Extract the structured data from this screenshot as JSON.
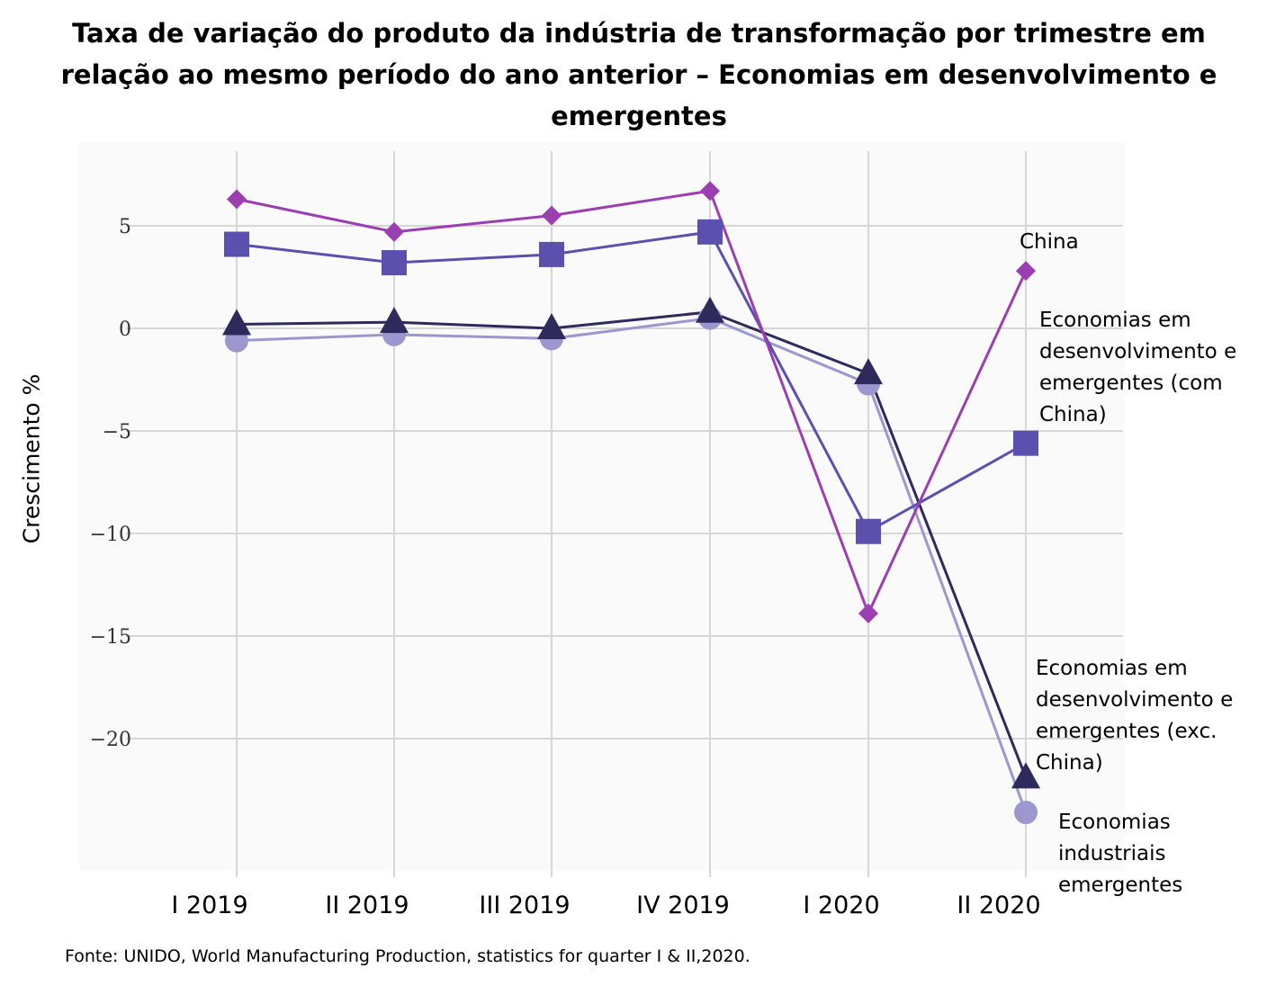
{
  "chart_data": {
    "type": "line",
    "title": "Taxa de variação do produto da indústria de transformação por trimestre em relação ao mesmo período do ano anterior – Economias em desenvolvimento e emergentes",
    "ylabel": "Crescimento %",
    "xlabel": "",
    "categories": [
      "I 2019",
      "II 2019",
      "III 2019",
      "IV 2019",
      "I 2020",
      "II 2020"
    ],
    "ylim": [
      -26,
      8.5
    ],
    "yticks": [
      5,
      0,
      -5,
      -10,
      -15,
      -20
    ],
    "ytick_labels": [
      "5",
      "0",
      "−5",
      "−10",
      "−15",
      "−20"
    ],
    "grid": true,
    "series": [
      {
        "name": "China",
        "marker": "diamond",
        "color": "#9b3fb0",
        "values": [
          6.3,
          4.7,
          5.5,
          6.7,
          -13.9,
          2.8
        ]
      },
      {
        "name": "Economias em desenvolvimento e emergentes (com China)",
        "marker": "square",
        "color": "#5b50ad",
        "values": [
          4.1,
          3.2,
          3.6,
          4.7,
          -9.9,
          -5.6
        ]
      },
      {
        "name": "Economias em desenvolvimento e emergentes (exc. China)",
        "marker": "triangle",
        "color": "#2e2a5c",
        "values": [
          0.2,
          0.3,
          0.0,
          0.8,
          -2.2,
          -21.9
        ]
      },
      {
        "name": "Economias industriais emergentes",
        "marker": "circle",
        "color": "#9c97cf",
        "values": [
          -0.6,
          -0.3,
          -0.5,
          0.5,
          -2.7,
          -23.6
        ]
      }
    ],
    "source": "Fonte: UNIDO, World Manufacturing Production, statistics for quarter I & II,2020."
  },
  "labels": {
    "china": [
      "China"
    ],
    "com_china": [
      "Economias em",
      "desenvolvimento e",
      "emergentes (com",
      "China)"
    ],
    "exc_china": [
      "Economias em",
      "desenvolvimento e",
      "emergentes (exc.",
      "China)"
    ],
    "industriais": [
      "Economias",
      "industriais",
      "emergentes"
    ]
  }
}
